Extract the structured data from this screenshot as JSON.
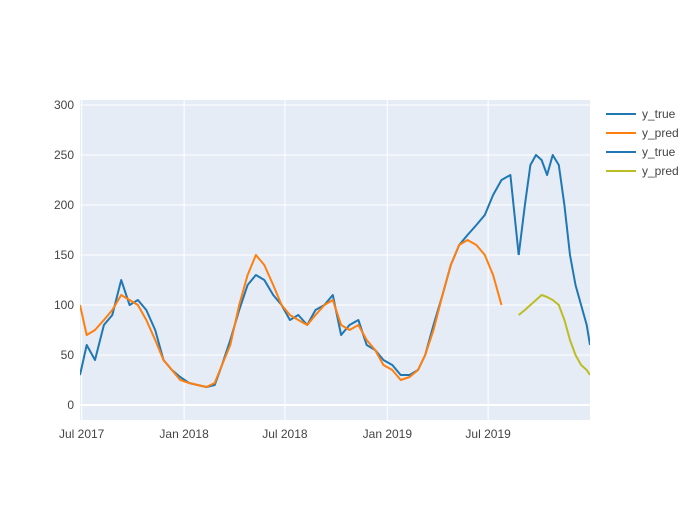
{
  "chart_data": {
    "type": "line",
    "title": "",
    "xlabel": "",
    "ylabel": "",
    "grid": true,
    "legend_position": "top-right",
    "xlim": [
      "2017-06-28",
      "2019-12-31"
    ],
    "ylim": [
      -15,
      305
    ],
    "yticks": [
      0,
      50,
      100,
      150,
      200,
      250,
      300
    ],
    "xticks": [
      {
        "date": "2017-07-01",
        "label": "Jul 2017"
      },
      {
        "date": "2018-01-01",
        "label": "Jan 2018"
      },
      {
        "date": "2018-07-01",
        "label": "Jul 2018"
      },
      {
        "date": "2019-01-01",
        "label": "Jan 2019"
      },
      {
        "date": "2019-07-01",
        "label": "Jul 2019"
      }
    ],
    "series": [
      {
        "name": "y_true",
        "color": "#1f77b4",
        "x": [
          "2017-06-28",
          "2017-07-10",
          "2017-07-25",
          "2017-08-10",
          "2017-08-25",
          "2017-09-10",
          "2017-09-25",
          "2017-10-10",
          "2017-10-25",
          "2017-11-10",
          "2017-11-25",
          "2017-12-10",
          "2017-12-25",
          "2018-01-10",
          "2018-01-25",
          "2018-02-10",
          "2018-02-25",
          "2018-03-10",
          "2018-03-25",
          "2018-04-10",
          "2018-04-25",
          "2018-05-10",
          "2018-05-25",
          "2018-06-10",
          "2018-06-25",
          "2018-07-10",
          "2018-07-25",
          "2018-08-10",
          "2018-08-25",
          "2018-09-10",
          "2018-09-25",
          "2018-10-10",
          "2018-10-25",
          "2018-11-10",
          "2018-11-25",
          "2018-12-10",
          "2018-12-25",
          "2019-01-10",
          "2019-01-25",
          "2019-02-10",
          "2019-02-25",
          "2019-03-10",
          "2019-03-25",
          "2019-04-10",
          "2019-04-25",
          "2019-05-10",
          "2019-05-25",
          "2019-06-10",
          "2019-06-25",
          "2019-07-10",
          "2019-07-25",
          "2019-08-10",
          "2019-08-25"
        ],
        "y": [
          30,
          60,
          45,
          80,
          90,
          125,
          100,
          105,
          95,
          75,
          45,
          35,
          28,
          22,
          20,
          18,
          20,
          40,
          65,
          95,
          120,
          130,
          125,
          110,
          100,
          85,
          90,
          80,
          95,
          100,
          110,
          70,
          80,
          85,
          60,
          55,
          45,
          40,
          30,
          30,
          35,
          50,
          80,
          110,
          140,
          160,
          170,
          180,
          190,
          210,
          225,
          230,
          150
        ]
      },
      {
        "name": "y_pred",
        "color": "#ff7f0e",
        "x": [
          "2017-06-28",
          "2017-07-10",
          "2017-07-25",
          "2017-08-10",
          "2017-08-25",
          "2017-09-10",
          "2017-09-25",
          "2017-10-10",
          "2017-10-25",
          "2017-11-10",
          "2017-11-25",
          "2017-12-10",
          "2017-12-25",
          "2018-01-10",
          "2018-01-25",
          "2018-02-10",
          "2018-02-25",
          "2018-03-10",
          "2018-03-25",
          "2018-04-10",
          "2018-04-25",
          "2018-05-10",
          "2018-05-25",
          "2018-06-10",
          "2018-06-25",
          "2018-07-10",
          "2018-07-25",
          "2018-08-10",
          "2018-08-25",
          "2018-09-10",
          "2018-09-25",
          "2018-10-10",
          "2018-10-25",
          "2018-11-10",
          "2018-11-25",
          "2018-12-10",
          "2018-12-25",
          "2019-01-10",
          "2019-01-25",
          "2019-02-10",
          "2019-02-25",
          "2019-03-10",
          "2019-03-25",
          "2019-04-10",
          "2019-04-25",
          "2019-05-10",
          "2019-05-25",
          "2019-06-10",
          "2019-06-25",
          "2019-07-10",
          "2019-07-25"
        ],
        "y": [
          100,
          70,
          75,
          85,
          95,
          110,
          105,
          100,
          85,
          65,
          45,
          35,
          25,
          22,
          20,
          18,
          22,
          40,
          60,
          100,
          130,
          150,
          140,
          120,
          100,
          90,
          85,
          80,
          90,
          100,
          105,
          80,
          75,
          80,
          65,
          55,
          40,
          35,
          25,
          28,
          35,
          50,
          75,
          110,
          140,
          160,
          165,
          160,
          150,
          130,
          100
        ]
      },
      {
        "name": "y_true",
        "color": "#1f77b4",
        "x": [
          "2019-08-25",
          "2019-09-05",
          "2019-09-15",
          "2019-09-25",
          "2019-10-05",
          "2019-10-15",
          "2019-10-25",
          "2019-11-05",
          "2019-11-15",
          "2019-11-25",
          "2019-12-05",
          "2019-12-15",
          "2019-12-25",
          "2019-12-31"
        ],
        "y": [
          150,
          200,
          240,
          250,
          245,
          230,
          250,
          240,
          200,
          150,
          120,
          100,
          80,
          60
        ]
      },
      {
        "name": "y_pred",
        "color": "#bcbd22",
        "x": [
          "2019-08-25",
          "2019-09-05",
          "2019-09-15",
          "2019-09-25",
          "2019-10-05",
          "2019-10-15",
          "2019-10-25",
          "2019-11-05",
          "2019-11-15",
          "2019-11-25",
          "2019-12-05",
          "2019-12-15",
          "2019-12-25",
          "2019-12-31"
        ],
        "y": [
          90,
          95,
          100,
          105,
          110,
          108,
          105,
          100,
          85,
          65,
          50,
          40,
          35,
          30
        ]
      }
    ]
  }
}
